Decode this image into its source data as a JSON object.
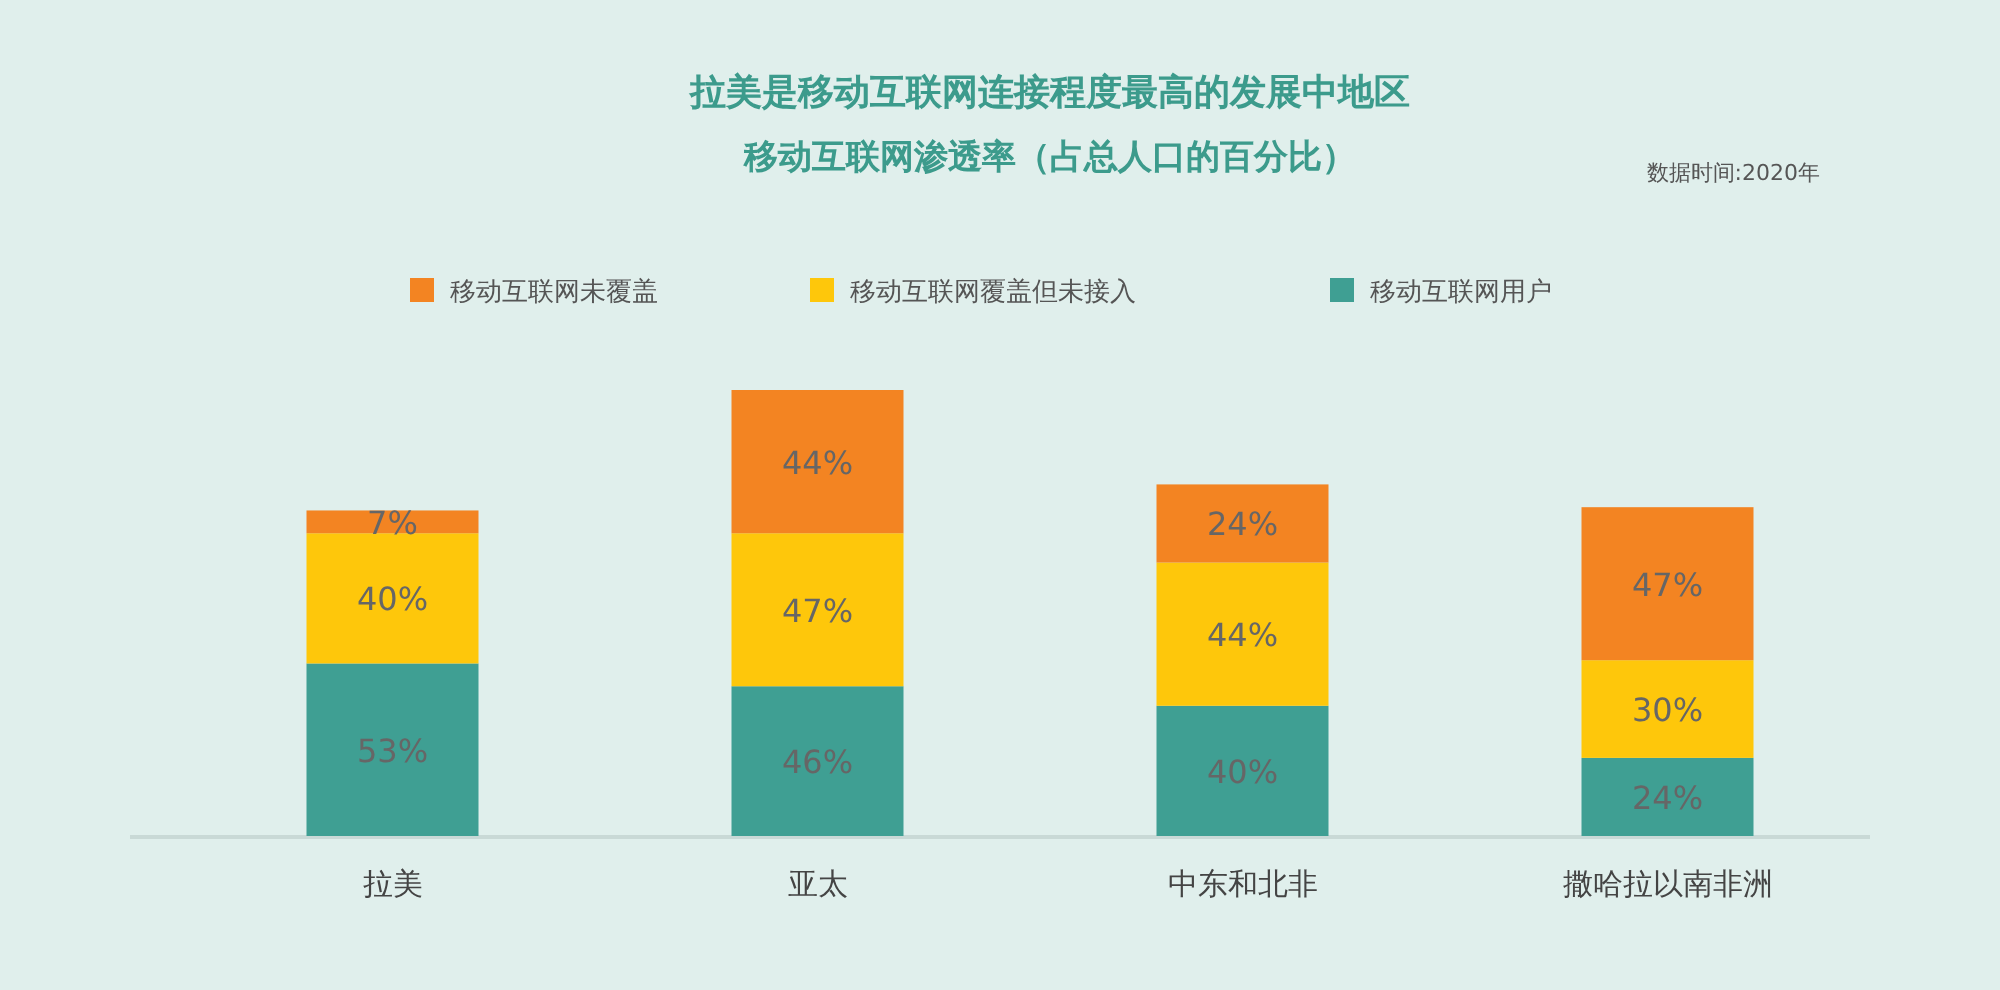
{
  "chart_data": {
    "type": "bar",
    "title": "拉美是移动互联网连接程度最高的发展中地区",
    "subtitle": "移动互联网渗透率（占总人口的百分比）",
    "annotations": [
      "数据时间:2020年"
    ],
    "categories": [
      "拉美",
      "亚太",
      "中东和北非",
      "撒哈拉以南非洲"
    ],
    "stacked": true,
    "legend": "top",
    "series": [
      {
        "name": "移动互联网用户",
        "color": "#3f9f93",
        "values": [
          53,
          46,
          40,
          24
        ],
        "value_labels": [
          "53%",
          "46%",
          "40%",
          "24%"
        ]
      },
      {
        "name": "移动互联网覆盖但未接入",
        "color": "#fec70b",
        "values": [
          40,
          47,
          44,
          30
        ],
        "value_labels": [
          "40%",
          "47%",
          "44%",
          "30%"
        ]
      },
      {
        "name": "移动互联网未覆盖",
        "color": "#f38422",
        "values": [
          7,
          44,
          24,
          47
        ],
        "value_labels": [
          "7%",
          "44%",
          "24%",
          "47%"
        ]
      }
    ]
  }
}
